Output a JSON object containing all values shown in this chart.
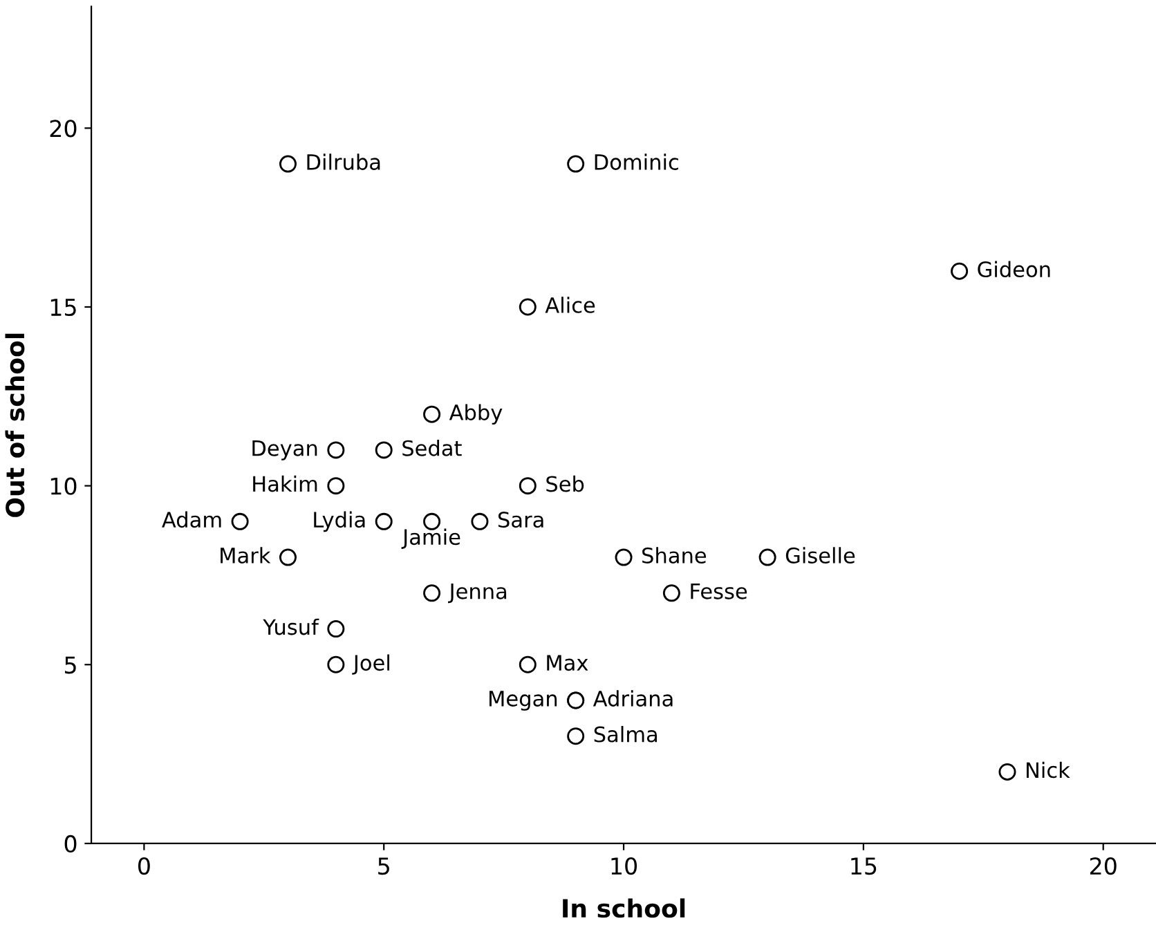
{
  "chart_data": {
    "type": "scatter",
    "xlabel": "In school",
    "ylabel": "Out of school",
    "x": [
      3,
      9,
      17,
      8,
      6,
      4,
      5,
      4,
      8,
      2,
      5,
      6,
      7,
      3,
      10,
      13,
      11,
      6,
      4,
      4,
      8,
      9,
      9,
      9,
      18
    ],
    "values": [
      19,
      19,
      16,
      15,
      12,
      11,
      11,
      10,
      10,
      9,
      9,
      9,
      9,
      8,
      8,
      8,
      7,
      7,
      6,
      5,
      5,
      4,
      4,
      3,
      2
    ],
    "value_labels": [
      "Dilruba",
      "Dominic",
      "Gideon",
      "Alice",
      "Abby",
      "Deyan",
      "Sedat",
      "Hakim",
      "Seb",
      "Adam",
      "Lydia",
      "Jamie",
      "Sara",
      "Mark",
      "Shane",
      "Giselle",
      "Fesse",
      "Jenna",
      "Yusuf",
      "Joel",
      "Max",
      "Megan",
      "Adriana",
      "Salma",
      "Nick"
    ],
    "color": "#000000",
    "marker": "circle",
    "xlim": [
      -1.1,
      21.1
    ],
    "ylim": [
      0,
      23.4
    ],
    "xticks": [
      0,
      5,
      10,
      15,
      20
    ],
    "yticks": [
      0,
      5,
      10,
      15,
      20
    ],
    "grid": false
  }
}
